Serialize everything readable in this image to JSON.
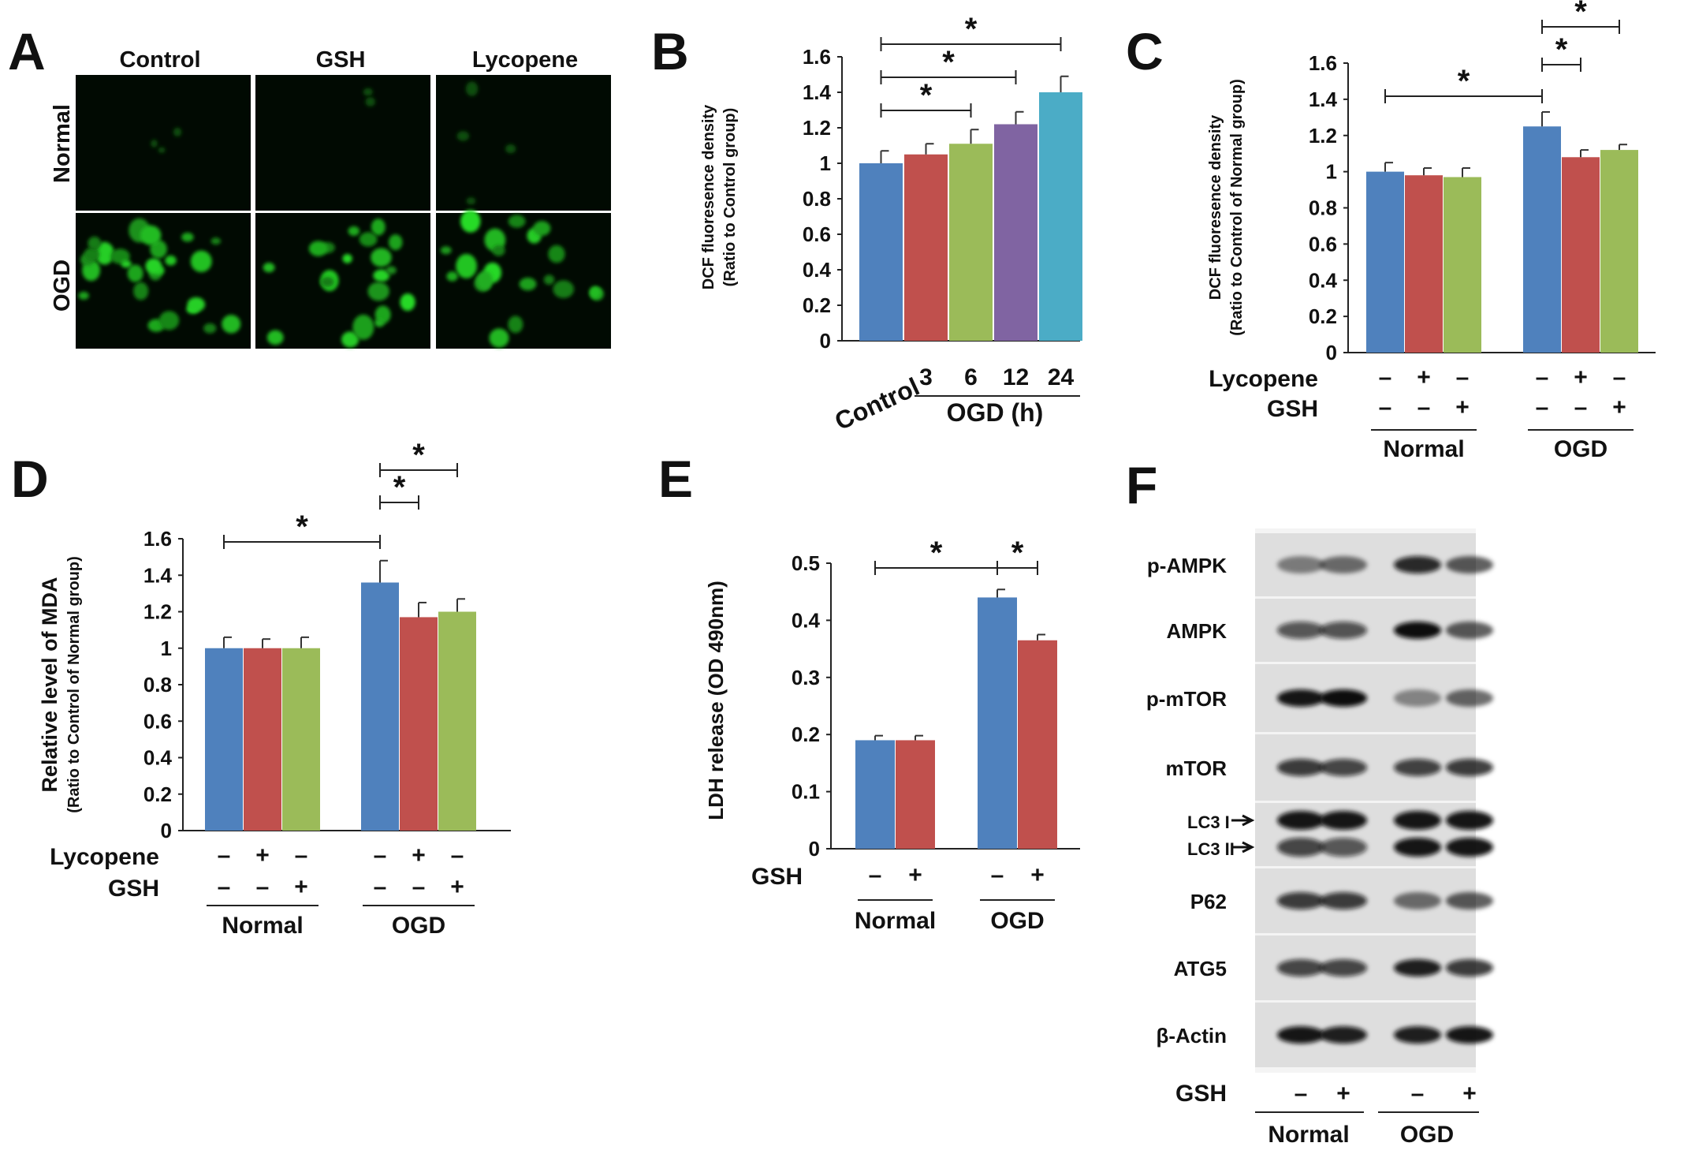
{
  "panels": {
    "a": {
      "letter": "A",
      "columns": [
        "Control",
        "GSH",
        "Lycopene"
      ],
      "rows": [
        "Normal",
        "OGD"
      ]
    },
    "b": {
      "letter": "B"
    },
    "c": {
      "letter": "C"
    },
    "d": {
      "letter": "D"
    },
    "e": {
      "letter": "E"
    },
    "f": {
      "letter": "F"
    }
  },
  "glyphs": {
    "plus": "+",
    "minus": "–",
    "star": "*"
  },
  "blot": {
    "rows": [
      "p-AMPK",
      "AMPK",
      "p-mTOR",
      "mTOR",
      "LC3 I",
      "LC3 II",
      "P62",
      "ATG5",
      "β-Actin"
    ],
    "lane_rows": [
      {
        "label": "GSH",
        "signs": [
          "–",
          "+",
          "–",
          "+"
        ]
      }
    ],
    "groups": [
      "Normal",
      "OGD"
    ],
    "band_intensity": {
      "p-AMPK": [
        0.35,
        0.45,
        0.85,
        0.55
      ],
      "AMPK": [
        0.6,
        0.62,
        1.0,
        0.55
      ],
      "p-mTOR": [
        0.95,
        1.0,
        0.3,
        0.5
      ],
      "mTOR": [
        0.75,
        0.7,
        0.72,
        0.75
      ],
      "LC3 I": [
        0.95,
        0.95,
        0.95,
        0.95
      ],
      "LC3 II": [
        0.7,
        0.6,
        0.95,
        0.95
      ],
      "P62": [
        0.75,
        0.75,
        0.45,
        0.55
      ],
      "ATG5": [
        0.7,
        0.7,
        0.9,
        0.75
      ],
      "β-Actin": [
        0.95,
        0.9,
        0.9,
        0.95
      ]
    }
  },
  "chart_data": [
    {
      "panel": "B",
      "type": "bar",
      "ylabel": "DCF fluoresence density",
      "ylabel2": "(Ratio to Control group)",
      "ylim": [
        0,
        1.6
      ],
      "yticks": [
        "0",
        "0.2",
        "0.4",
        "0.6",
        "0.8",
        "1",
        "1.2",
        "1.4",
        "1.6"
      ],
      "categories": [
        "Control",
        "3",
        "6",
        "12",
        "24"
      ],
      "values": [
        1.0,
        1.05,
        1.11,
        1.22,
        1.4
      ],
      "errors": [
        0.07,
        0.06,
        0.08,
        0.07,
        0.09
      ],
      "colors": [
        "#4f81bd",
        "#c0504d",
        "#9bbb59",
        "#8064a2",
        "#4bacc6"
      ],
      "group_label": "OGD (h)",
      "significance": [
        {
          "from": 0,
          "to": 2,
          "label": "*"
        },
        {
          "from": 0,
          "to": 3,
          "label": "*"
        },
        {
          "from": 0,
          "to": 4,
          "label": "*"
        }
      ]
    },
    {
      "panel": "C",
      "type": "bar",
      "ylabel": "DCF  fluoresence density",
      "ylabel2": "(Ratio to Control of Normal group)",
      "ylim": [
        0,
        1.6
      ],
      "yticks": [
        "0",
        "0.2",
        "0.4",
        "0.6",
        "0.8",
        "1",
        "1.2",
        "1.4",
        "1.6"
      ],
      "groups": [
        "Normal",
        "OGD"
      ],
      "values": [
        1.0,
        0.98,
        0.97,
        1.25,
        1.08,
        1.12
      ],
      "errors": [
        0.05,
        0.04,
        0.05,
        0.08,
        0.04,
        0.03
      ],
      "colors": [
        "#4f81bd",
        "#c0504d",
        "#9bbb59",
        "#4f81bd",
        "#c0504d",
        "#9bbb59"
      ],
      "treatments": [
        {
          "label": "Lycopene",
          "signs": [
            "–",
            "+",
            "–",
            "–",
            "+",
            "–"
          ]
        },
        {
          "label": "GSH",
          "signs": [
            "–",
            "–",
            "+",
            "–",
            "–",
            "+"
          ]
        }
      ],
      "significance": [
        {
          "from": 0,
          "to": 3,
          "label": "*"
        },
        {
          "from": 3,
          "to": 4,
          "label": "*"
        },
        {
          "from": 3,
          "to": 5,
          "label": "*"
        }
      ]
    },
    {
      "panel": "D",
      "type": "bar",
      "ylabel": "Relative level of MDA",
      "ylabel2": "(Ratio to Control of Normal group)",
      "ylim": [
        0,
        1.6
      ],
      "yticks": [
        "0",
        "0.2",
        "0.4",
        "0.6",
        "0.8",
        "1",
        "1.2",
        "1.4",
        "1.6"
      ],
      "groups": [
        "Normal",
        "OGD"
      ],
      "values": [
        1.0,
        1.0,
        1.0,
        1.36,
        1.17,
        1.2
      ],
      "errors": [
        0.06,
        0.05,
        0.06,
        0.12,
        0.08,
        0.07
      ],
      "colors": [
        "#4f81bd",
        "#c0504d",
        "#9bbb59",
        "#4f81bd",
        "#c0504d",
        "#9bbb59"
      ],
      "treatments": [
        {
          "label": "Lycopene",
          "signs": [
            "–",
            "+",
            "–",
            "–",
            "+",
            "–"
          ]
        },
        {
          "label": "GSH",
          "signs": [
            "–",
            "–",
            "+",
            "–",
            "–",
            "+"
          ]
        }
      ],
      "significance": [
        {
          "from": 0,
          "to": 3,
          "label": "*"
        },
        {
          "from": 3,
          "to": 4,
          "label": "*"
        },
        {
          "from": 3,
          "to": 5,
          "label": "*"
        }
      ]
    },
    {
      "panel": "E",
      "type": "bar",
      "ylabel": "LDH release (OD 490nm)",
      "ylim": [
        0,
        0.5
      ],
      "yticks": [
        "0",
        "0.1",
        "0.2",
        "0.3",
        "0.4",
        "0.5"
      ],
      "groups": [
        "Normal",
        "OGD"
      ],
      "values": [
        0.19,
        0.19,
        0.44,
        0.365
      ],
      "errors": [
        0.008,
        0.008,
        0.014,
        0.01
      ],
      "colors": [
        "#4f81bd",
        "#c0504d",
        "#4f81bd",
        "#c0504d"
      ],
      "treatments": [
        {
          "label": "GSH",
          "signs": [
            "–",
            "+",
            "–",
            "+"
          ]
        }
      ],
      "significance": [
        {
          "from": 0,
          "to": 2,
          "label": "*"
        },
        {
          "from": 2,
          "to": 3,
          "label": "*"
        }
      ]
    }
  ]
}
